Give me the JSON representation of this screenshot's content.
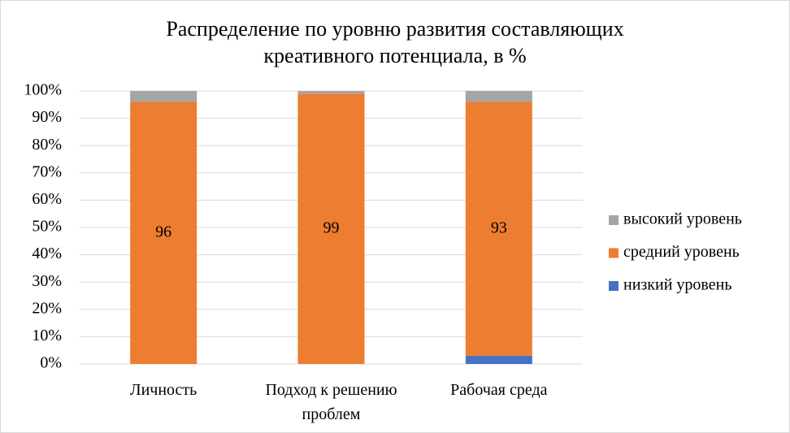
{
  "chart_data": {
    "type": "stacked_bar_100",
    "title": "Распределение по уровню развития составляющих креативного потенциала, в %",
    "categories": [
      "Личность",
      "Подход к решению проблем",
      "Рабочая среда"
    ],
    "series": [
      {
        "name": "низкий уровень",
        "color": "#4472c4",
        "values": [
          0,
          0,
          3
        ]
      },
      {
        "name": "средний уровень",
        "color": "#ed7d31",
        "values": [
          96,
          99,
          93
        ],
        "show_labels": true
      },
      {
        "name": "высокий уровень",
        "color": "#a5a5a5",
        "values": [
          4,
          1,
          4
        ]
      }
    ],
    "ylim": [
      0,
      100
    ],
    "yticks": [
      {
        "value": 0,
        "label": "0%"
      },
      {
        "value": 10,
        "label": "10%"
      },
      {
        "value": 20,
        "label": "20%"
      },
      {
        "value": 30,
        "label": "30%"
      },
      {
        "value": 40,
        "label": "40%"
      },
      {
        "value": 50,
        "label": "50%"
      },
      {
        "value": 60,
        "label": "60%"
      },
      {
        "value": 70,
        "label": "70%"
      },
      {
        "value": 80,
        "label": "80%"
      },
      {
        "value": 90,
        "label": "90%"
      },
      {
        "value": 100,
        "label": "100%"
      }
    ],
    "grid": true,
    "legend": "right"
  }
}
